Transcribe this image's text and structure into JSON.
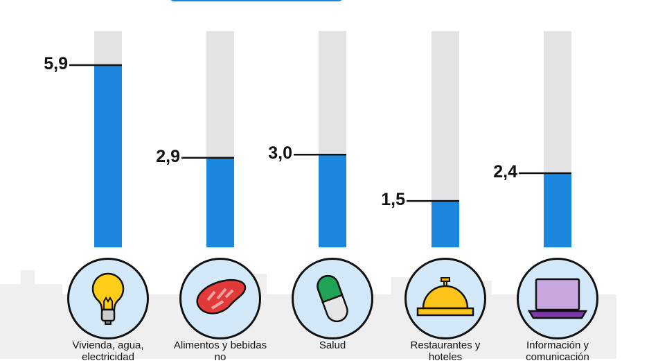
{
  "chart_data": {
    "type": "bar",
    "categories": [
      "Vivienda, agua, electricidad",
      "Alimentos y bebidas no",
      "Salud",
      "Restaurantes y hoteles",
      "Información y comunicación"
    ],
    "values": [
      5.9,
      2.9,
      3.0,
      1.5,
      2.4
    ],
    "value_labels": [
      "5,9",
      "2,9",
      "3,0",
      "1,5",
      "2,4"
    ],
    "icons": [
      "lightbulb-icon",
      "meat-icon",
      "pill-icon",
      "service-bell-icon",
      "laptop-icon"
    ],
    "ylim": [
      0,
      7
    ],
    "grid": false,
    "colors": {
      "bar": "#1b87df",
      "track": "#e3e3e5",
      "icon_bg": "#d3e8f8"
    }
  }
}
